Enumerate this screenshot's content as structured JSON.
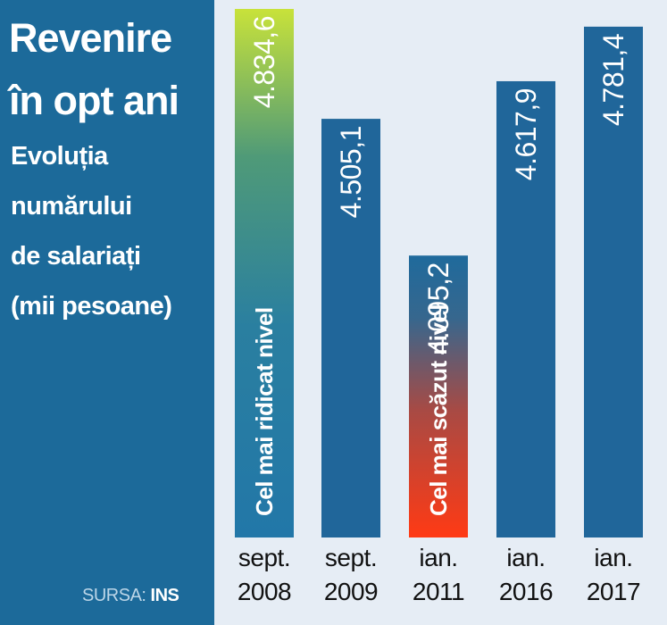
{
  "title": [
    "Revenire",
    "în opt ani"
  ],
  "subtitle": [
    "Evoluția",
    "numărului",
    "de salariați",
    "(mii pesoane)"
  ],
  "source": {
    "label": "SURSA:",
    "value": "INS"
  },
  "colors": {
    "panel": "#1c6a9a",
    "bar": "#20669a",
    "chart_bg": "#e6edf5",
    "highest_gradient": [
      "#c8e23a",
      "#2a7fa0"
    ],
    "lowest_gradient": [
      "#1f6a9c",
      "#ff3a14"
    ]
  },
  "chart_data": {
    "type": "bar",
    "title": "Revenire în opt ani",
    "subtitle": "Evoluția numărului de salariați (mii pesoane)",
    "categories": [
      [
        "sept.",
        "2008"
      ],
      [
        "sept.",
        "2009"
      ],
      [
        "ian.",
        "2011"
      ],
      [
        "ian.",
        "2016"
      ],
      [
        "ian.",
        "2017"
      ]
    ],
    "values": [
      4834.6,
      4505.1,
      4095.2,
      4617.9,
      4781.4
    ],
    "value_labels": [
      "4.834,6",
      "4.505,1",
      "4.095,2",
      "4.617,9",
      "4.781,4"
    ],
    "annotations": [
      {
        "index": 0,
        "text": "Cel mai ridicat nivel"
      },
      {
        "index": 2,
        "text": "Cel mai scăzut nivel"
      }
    ],
    "orientation": "vertical",
    "grid": false,
    "legend": "none"
  }
}
